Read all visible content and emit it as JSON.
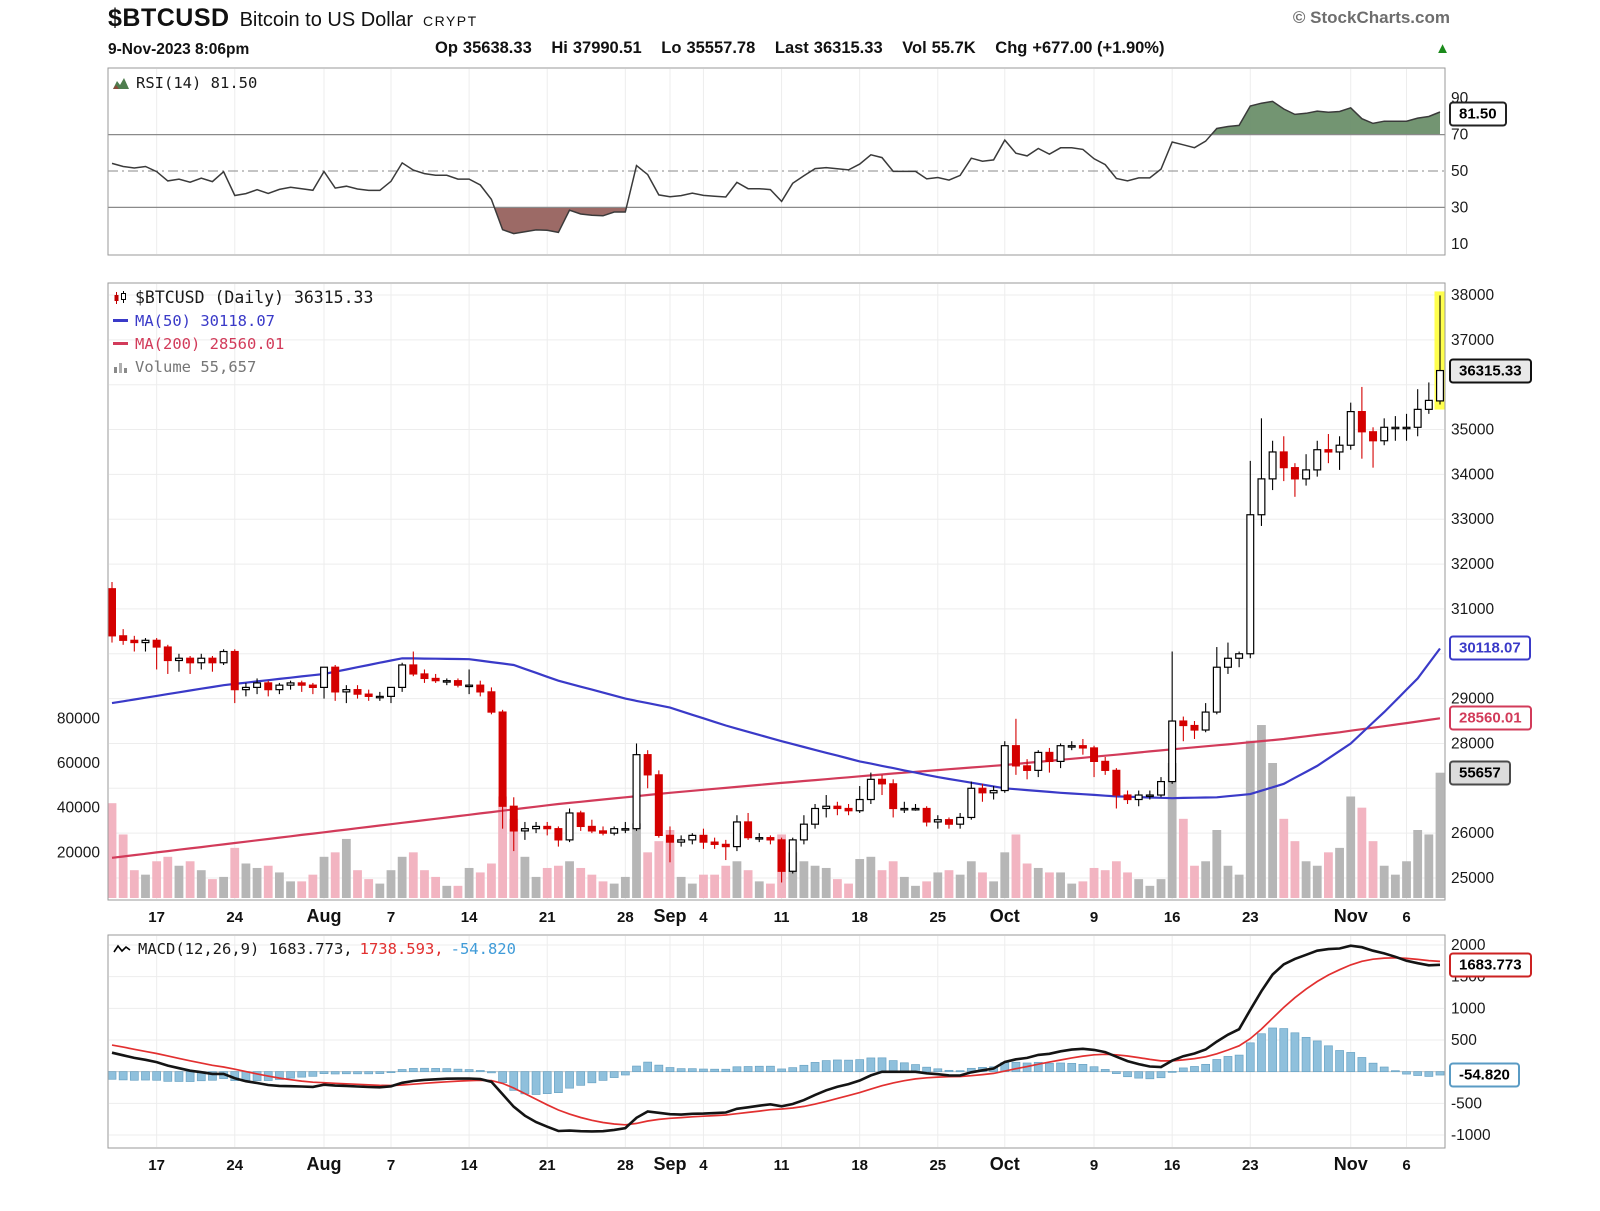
{
  "header": {
    "symbol": "$BTCUSD",
    "name": "Bitcoin to US Dollar",
    "exchange": "CRYPT",
    "brand": "© StockCharts.com",
    "datetime": "9-Nov-2023 8:06pm",
    "quote": [
      {
        "label": "Op",
        "value": "35638.33"
      },
      {
        "label": "Hi",
        "value": "37990.51"
      },
      {
        "label": "Lo",
        "value": "35557.78"
      },
      {
        "label": "Last",
        "value": "36315.33"
      },
      {
        "label": "Vol",
        "value": "55.7K"
      },
      {
        "label": "Chg",
        "value": "+677.00 (+1.90%)"
      }
    ],
    "change_icon": "▲",
    "change_color": "#1a8a1a"
  },
  "panels": {
    "rsi": {
      "legend": "RSI(14) 81.50",
      "value_label": "81.50",
      "yticks": [
        90,
        70,
        50,
        30,
        10
      ],
      "overbought": 70,
      "oversold": 30,
      "mid": 50
    },
    "price": {
      "legend_symbol": "$BTCUSD (Daily) 36315.33",
      "legend_ma50": "MA(50) 30118.07",
      "legend_ma200": "MA(200) 28560.01",
      "legend_volume": "Volume 55,657",
      "last_price_label": "36315.33",
      "ma50_label": "30118.07",
      "ma200_label": "28560.01",
      "volume_label": "55657",
      "yticks_visible": [
        38000,
        37000,
        35000,
        34000,
        33000,
        32000,
        31000,
        29000,
        28000,
        26000,
        25000
      ],
      "volume_ticks": [
        80000,
        60000,
        40000,
        20000
      ]
    },
    "macd": {
      "legend_main": "MACD(12,26,9) 1683.773,",
      "legend_signal": "1738.593,",
      "legend_hist": "-54.820",
      "macd_label": "1683.773",
      "hist_label": "-54.820",
      "yticks": [
        2000,
        1500,
        1000,
        500,
        -500,
        -1000
      ]
    }
  },
  "xticks": [
    {
      "day": 4,
      "label": "17"
    },
    {
      "day": 11,
      "label": "24"
    },
    {
      "day": 19,
      "label": "Aug",
      "month": true
    },
    {
      "day": 25,
      "label": "7"
    },
    {
      "day": 32,
      "label": "14"
    },
    {
      "day": 39,
      "label": "21"
    },
    {
      "day": 46,
      "label": "28"
    },
    {
      "day": 50,
      "label": "Sep",
      "month": true
    },
    {
      "day": 53,
      "label": "4"
    },
    {
      "day": 60,
      "label": "11"
    },
    {
      "day": 67,
      "label": "18"
    },
    {
      "day": 74,
      "label": "25"
    },
    {
      "day": 80,
      "label": "Oct",
      "month": true
    },
    {
      "day": 88,
      "label": "9"
    },
    {
      "day": 95,
      "label": "16"
    },
    {
      "day": 102,
      "label": "23"
    },
    {
      "day": 111,
      "label": "Nov",
      "month": true
    },
    {
      "day": 116,
      "label": "6"
    }
  ],
  "chart_data": {
    "type": "candlestick",
    "title": "$BTCUSD (Daily)",
    "x_start_date": "2023-07-13",
    "ylim": [
      25000,
      38000
    ],
    "volume_ylim": [
      0,
      90000
    ],
    "rsi_ylim": [
      0,
      100
    ],
    "macd_ylim": [
      -1000,
      2000
    ],
    "ohlcv": [
      [
        31450,
        31600,
        30250,
        30400,
        42000
      ],
      [
        30400,
        30550,
        30200,
        30300,
        28000
      ],
      [
        30300,
        30400,
        30050,
        30250,
        12000
      ],
      [
        30250,
        30350,
        30050,
        30300,
        10000
      ],
      [
        30300,
        30350,
        29650,
        30150,
        16000
      ],
      [
        30150,
        30200,
        29550,
        29850,
        18000
      ],
      [
        29850,
        30000,
        29600,
        29900,
        14000
      ],
      [
        29900,
        29950,
        29550,
        29800,
        16000
      ],
      [
        29800,
        30000,
        29650,
        29900,
        12000
      ],
      [
        29900,
        29950,
        29600,
        29800,
        8000
      ],
      [
        29800,
        30100,
        29750,
        30050,
        9000
      ],
      [
        30050,
        30100,
        28900,
        29200,
        22000
      ],
      [
        29200,
        29350,
        29050,
        29250,
        15000
      ],
      [
        29250,
        29450,
        29100,
        29350,
        13000
      ],
      [
        29350,
        29400,
        29050,
        29200,
        14000
      ],
      [
        29200,
        29350,
        29100,
        29300,
        11000
      ],
      [
        29300,
        29400,
        29200,
        29350,
        7000
      ],
      [
        29350,
        29400,
        29150,
        29300,
        7000
      ],
      [
        29300,
        29350,
        29100,
        29250,
        10000
      ],
      [
        29250,
        29700,
        29000,
        29700,
        18000
      ],
      [
        29700,
        29750,
        28950,
        29150,
        20000
      ],
      [
        29150,
        29300,
        28900,
        29200,
        26000
      ],
      [
        29200,
        29300,
        29000,
        29100,
        12000
      ],
      [
        29100,
        29200,
        28950,
        29050,
        8000
      ],
      [
        29050,
        29150,
        28950,
        29050,
        6000
      ],
      [
        29050,
        29250,
        28900,
        29250,
        12000
      ],
      [
        29250,
        29800,
        29150,
        29750,
        18000
      ],
      [
        29750,
        30050,
        29500,
        29550,
        20000
      ],
      [
        29550,
        29650,
        29350,
        29450,
        12000
      ],
      [
        29450,
        29550,
        29350,
        29400,
        9000
      ],
      [
        29400,
        29450,
        29300,
        29400,
        5000
      ],
      [
        29400,
        29450,
        29250,
        29300,
        5000
      ],
      [
        29300,
        29650,
        29100,
        29300,
        13000
      ],
      [
        29300,
        29400,
        29050,
        29150,
        11000
      ],
      [
        29150,
        29250,
        28650,
        28700,
        15000
      ],
      [
        28700,
        28750,
        26100,
        26600,
        45000
      ],
      [
        26600,
        26800,
        25600,
        26050,
        35000
      ],
      [
        26050,
        26250,
        25850,
        26100,
        18000
      ],
      [
        26100,
        26250,
        26000,
        26150,
        9000
      ],
      [
        26150,
        26250,
        25950,
        26100,
        13000
      ],
      [
        26100,
        26150,
        25700,
        25850,
        14000
      ],
      [
        25850,
        26550,
        25800,
        26450,
        16000
      ],
      [
        26450,
        26500,
        26050,
        26150,
        13000
      ],
      [
        26150,
        26300,
        26000,
        26050,
        10000
      ],
      [
        26050,
        26150,
        25950,
        26000,
        7000
      ],
      [
        26000,
        26150,
        25950,
        26100,
        6000
      ],
      [
        26100,
        26250,
        26000,
        26100,
        9000
      ],
      [
        26100,
        28000,
        26050,
        27750,
        33000
      ],
      [
        27750,
        27850,
        27000,
        27300,
        20000
      ],
      [
        27300,
        27400,
        25900,
        25950,
        25000
      ],
      [
        25950,
        26150,
        25350,
        25800,
        30000
      ],
      [
        25800,
        25950,
        25700,
        25850,
        9000
      ],
      [
        25850,
        26000,
        25750,
        25950,
        6000
      ],
      [
        25950,
        26100,
        25650,
        25800,
        10000
      ],
      [
        25800,
        25900,
        25650,
        25750,
        10000
      ],
      [
        25750,
        25850,
        25400,
        25700,
        14000
      ],
      [
        25700,
        26400,
        25600,
        26250,
        16000
      ],
      [
        26250,
        26450,
        25850,
        25900,
        12000
      ],
      [
        25900,
        26000,
        25800,
        25900,
        7000
      ],
      [
        25900,
        25950,
        25750,
        25850,
        6000
      ],
      [
        25850,
        25900,
        24900,
        25150,
        28000
      ],
      [
        25150,
        25900,
        25100,
        25850,
        20000
      ],
      [
        25850,
        26400,
        25750,
        26200,
        16000
      ],
      [
        26200,
        26650,
        26100,
        26550,
        14000
      ],
      [
        26550,
        26850,
        26350,
        26600,
        13000
      ],
      [
        26600,
        26700,
        26400,
        26550,
        8000
      ],
      [
        26550,
        26650,
        26400,
        26500,
        6000
      ],
      [
        26500,
        27050,
        26450,
        26750,
        17000
      ],
      [
        26750,
        27350,
        26650,
        27200,
        18000
      ],
      [
        27200,
        27300,
        26850,
        27100,
        12000
      ],
      [
        27100,
        27200,
        26350,
        26550,
        16000
      ],
      [
        26550,
        26700,
        26450,
        26550,
        9000
      ],
      [
        26550,
        26650,
        26500,
        26550,
        5000
      ],
      [
        26550,
        26600,
        26150,
        26250,
        7000
      ],
      [
        26250,
        26400,
        26100,
        26300,
        11000
      ],
      [
        26300,
        26350,
        26100,
        26200,
        12000
      ],
      [
        26200,
        26450,
        26100,
        26350,
        10000
      ],
      [
        26350,
        27150,
        26300,
        27000,
        16000
      ],
      [
        27000,
        27100,
        26700,
        26900,
        11000
      ],
      [
        26900,
        27050,
        26750,
        26950,
        7000
      ],
      [
        26950,
        28050,
        26900,
        27950,
        20000
      ],
      [
        27950,
        28550,
        27300,
        27500,
        28000
      ],
      [
        27500,
        27650,
        27200,
        27400,
        15000
      ],
      [
        27400,
        27850,
        27250,
        27800,
        13000
      ],
      [
        27800,
        27900,
        27350,
        27600,
        11000
      ],
      [
        27600,
        28000,
        27450,
        27950,
        11000
      ],
      [
        27950,
        28050,
        27850,
        27950,
        6000
      ],
      [
        27950,
        28100,
        27750,
        27900,
        7000
      ],
      [
        27900,
        27950,
        27250,
        27600,
        13000
      ],
      [
        27600,
        27700,
        27300,
        27400,
        12000
      ],
      [
        27400,
        27450,
        26550,
        26850,
        16000
      ],
      [
        26850,
        26950,
        26650,
        26750,
        11000
      ],
      [
        26750,
        26950,
        26600,
        26850,
        8000
      ],
      [
        26850,
        26950,
        26750,
        26850,
        5000
      ],
      [
        26850,
        27250,
        26800,
        27150,
        8000
      ],
      [
        27150,
        30050,
        27100,
        28500,
        60000
      ],
      [
        28500,
        28600,
        28050,
        28400,
        35000
      ],
      [
        28400,
        28500,
        28100,
        28300,
        14000
      ],
      [
        28300,
        28900,
        28250,
        28700,
        16000
      ],
      [
        28700,
        30150,
        28650,
        29700,
        30000
      ],
      [
        29700,
        30250,
        29550,
        29900,
        14000
      ],
      [
        29900,
        30050,
        29700,
        30000,
        10000
      ],
      [
        30000,
        34300,
        29900,
        33100,
        70000
      ],
      [
        33100,
        35250,
        32850,
        33900,
        77000
      ],
      [
        33900,
        34750,
        33650,
        34500,
        60000
      ],
      [
        34500,
        34850,
        33850,
        34150,
        35000
      ],
      [
        34150,
        34250,
        33500,
        33900,
        25000
      ],
      [
        33900,
        34450,
        33750,
        34100,
        16000
      ],
      [
        34100,
        34750,
        33950,
        34550,
        14000
      ],
      [
        34550,
        34900,
        34250,
        34500,
        20000
      ],
      [
        34500,
        34850,
        34100,
        34650,
        22000
      ],
      [
        34650,
        35600,
        34550,
        35400,
        45000
      ],
      [
        35400,
        35950,
        34350,
        34950,
        40000
      ],
      [
        34950,
        35050,
        34150,
        34750,
        25000
      ],
      [
        34750,
        35250,
        34650,
        35050,
        14000
      ],
      [
        35050,
        35300,
        34750,
        35050,
        10000
      ],
      [
        35050,
        35350,
        34750,
        35050,
        16000
      ],
      [
        35050,
        35900,
        34850,
        35450,
        30000
      ],
      [
        35450,
        36050,
        35350,
        35650,
        28000
      ],
      [
        35638.33,
        37990.51,
        35557.78,
        36315.33,
        55657
      ]
    ],
    "indicators": {
      "price_last": 36315.33,
      "rsi": {
        "period": 14,
        "last": 81.5
      },
      "ma50": {
        "last": 30118.07,
        "points": [
          [
            0,
            28900
          ],
          [
            10,
            29300
          ],
          [
            19,
            29550
          ],
          [
            26,
            29900
          ],
          [
            32,
            29880
          ],
          [
            36,
            29750
          ],
          [
            40,
            29400
          ],
          [
            46,
            29000
          ],
          [
            50,
            28800
          ],
          [
            55,
            28400
          ],
          [
            60,
            28050
          ],
          [
            67,
            27600
          ],
          [
            74,
            27250
          ],
          [
            80,
            27000
          ],
          [
            85,
            26900
          ],
          [
            90,
            26820
          ],
          [
            95,
            26780
          ],
          [
            99,
            26800
          ],
          [
            102,
            26870
          ],
          [
            105,
            27100
          ],
          [
            108,
            27500
          ],
          [
            111,
            28000
          ],
          [
            114,
            28700
          ],
          [
            117,
            29450
          ],
          [
            119,
            30118
          ]
        ]
      },
      "ma200": {
        "last": 28560.01,
        "points": [
          [
            0,
            25450
          ],
          [
            10,
            25750
          ],
          [
            20,
            26050
          ],
          [
            30,
            26350
          ],
          [
            40,
            26650
          ],
          [
            50,
            26900
          ],
          [
            60,
            27120
          ],
          [
            70,
            27330
          ],
          [
            80,
            27520
          ],
          [
            90,
            27750
          ],
          [
            95,
            27870
          ],
          [
            100,
            27980
          ],
          [
            105,
            28100
          ],
          [
            110,
            28250
          ],
          [
            115,
            28420
          ],
          [
            119,
            28560
          ]
        ]
      },
      "volume_last": 55657,
      "macd": {
        "fast": 12,
        "slow": 26,
        "signal_period": 9,
        "last": 1683.773,
        "signal_last": 1738.593,
        "hist_last": -54.82
      }
    }
  }
}
